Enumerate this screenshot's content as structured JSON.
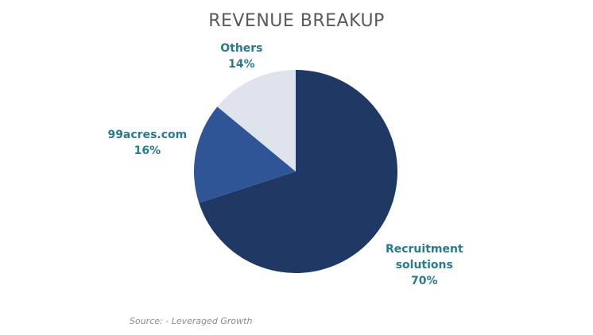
{
  "chart_data": {
    "type": "pie",
    "title": "REVENUE BREAKUP",
    "categories": [
      "Recruitment solutions",
      "99acres.com",
      "Others"
    ],
    "values": [
      70,
      16,
      14
    ],
    "value_labels": [
      "70%",
      "16%",
      "14%"
    ],
    "colors": [
      "#203864",
      "#2f5597",
      "#dee3ee"
    ],
    "source": "Source: - Leveraged Growth"
  }
}
